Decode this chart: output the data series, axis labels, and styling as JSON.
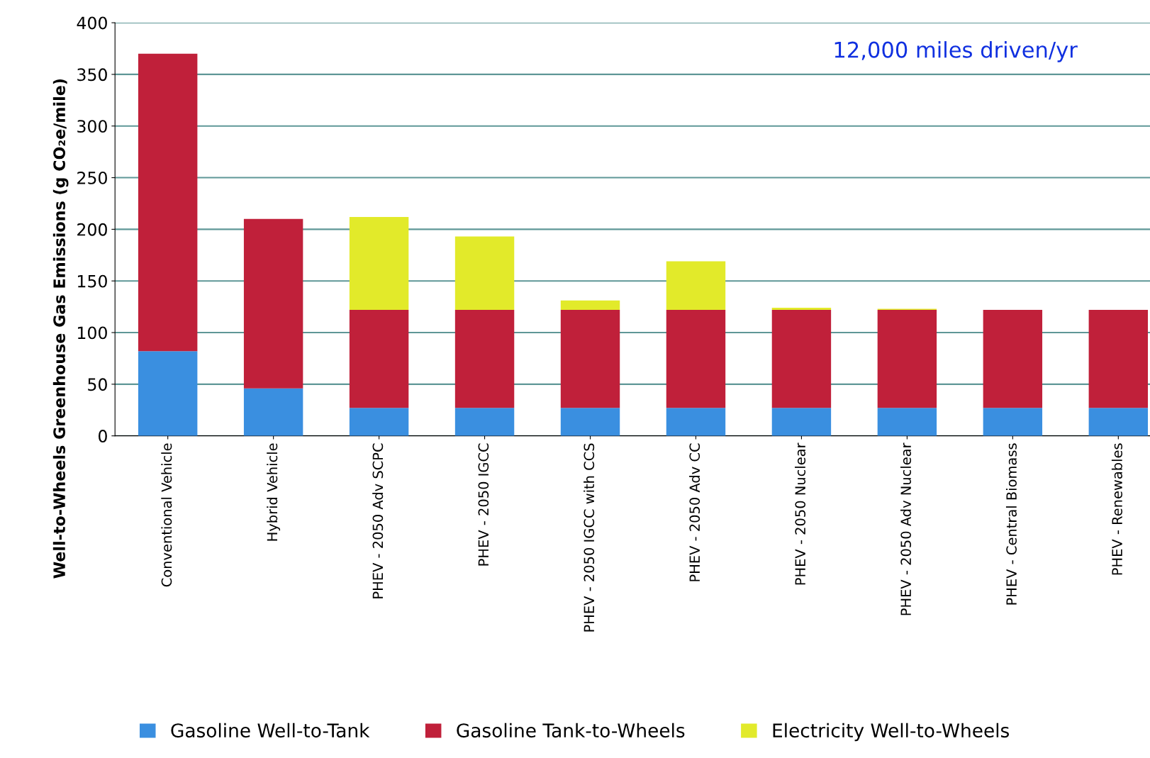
{
  "chart_data": {
    "type": "bar",
    "stacked": true,
    "ylabel": "Well-to-Wheels Greenhouse Gas Emissions (g CO₂e/mile)",
    "categories": [
      "Conventional Vehicle",
      "Hybrid Vehicle",
      "PHEV - 2050 Adv SCPC",
      "PHEV - 2050 IGCC",
      "PHEV - 2050 IGCC with CCS",
      "PHEV - 2050 Adv CC",
      "PHEV - 2050 Nuclear",
      "PHEV - 2050 Adv Nuclear",
      "PHEV - Central Biomass",
      "PHEV - Renewables"
    ],
    "series": [
      {
        "name": "Gasoline Well-to-Tank",
        "color": "#3a8fe0",
        "values": [
          82,
          46,
          27,
          27,
          27,
          27,
          27,
          27,
          27,
          27
        ]
      },
      {
        "name": "Gasoline Tank-to-Wheels",
        "color": "#c0203a",
        "values": [
          288,
          164,
          95,
          95,
          95,
          95,
          95,
          95,
          95,
          95
        ]
      },
      {
        "name": "Electricity Well-to-Wheels",
        "color": "#e2ea2a",
        "values": [
          0,
          0,
          90,
          71,
          9,
          47,
          2,
          1,
          0,
          0
        ]
      }
    ],
    "ylim": [
      0,
      400
    ],
    "yticks": [
      0,
      50,
      100,
      150,
      200,
      250,
      300,
      350,
      400
    ],
    "grid": "y",
    "legend": "bottom",
    "annotations": [
      "12,000 miles driven/yr"
    ]
  }
}
